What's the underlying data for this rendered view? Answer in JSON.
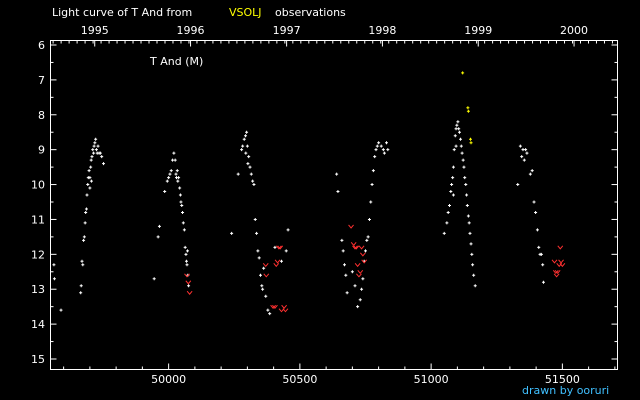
{
  "chart_data": {
    "type": "scatter",
    "title_parts": [
      "Light curve of T And from",
      "VSOLJ",
      "observations"
    ],
    "star_label": "T And (M)",
    "credit": "drawn by ooruri",
    "x_axis": {
      "label": "",
      "range": [
        49550,
        51710
      ],
      "ticks": [
        50000,
        50500,
        51000,
        51500
      ],
      "tick_labels": [
        "50000",
        "50500",
        "51000",
        "51500"
      ]
    },
    "year_axis": {
      "labels": [
        "1995",
        "1996",
        "1997",
        "1998",
        "1999",
        "2000"
      ],
      "positions_jd": [
        49718.5,
        50083.5,
        50449.5,
        50814.5,
        51179.5,
        51544.5
      ]
    },
    "y_axis": {
      "label": "",
      "range": [
        6,
        15.3
      ],
      "inverted": true,
      "ticks": [
        6,
        7,
        8,
        9,
        10,
        11,
        12,
        13,
        14,
        15
      ],
      "tick_labels": [
        "6",
        "7",
        "8",
        "9",
        "10",
        "11",
        "12",
        "13",
        "14",
        "15"
      ]
    },
    "colors": {
      "visual": "#ffffff",
      "other": "#ffff00",
      "fainter_than": "#ff3030"
    },
    "series": [
      {
        "marker": "plus",
        "color": "#ffffff",
        "points": [
          [
            49563,
            12.3
          ],
          [
            49565,
            12.7
          ],
          [
            49590,
            13.6
          ],
          [
            49665,
            13.1
          ],
          [
            49667,
            12.9
          ],
          [
            49670,
            12.2
          ],
          [
            49673,
            12.3
          ],
          [
            49676,
            11.6
          ],
          [
            49679,
            11.5
          ],
          [
            49682,
            11.1
          ],
          [
            49684,
            10.8
          ],
          [
            49687,
            10.7
          ],
          [
            49689,
            10.3
          ],
          [
            49692,
            10.0
          ],
          [
            49694,
            9.8
          ],
          [
            49697,
            9.6
          ],
          [
            49700,
            9.8
          ],
          [
            49703,
            9.5
          ],
          [
            49705,
            9.3
          ],
          [
            49708,
            9.2
          ],
          [
            49711,
            9.0
          ],
          [
            49714,
            9.1
          ],
          [
            49716,
            8.9
          ],
          [
            49719,
            8.8
          ],
          [
            49722,
            8.7
          ],
          [
            49725,
            9.0
          ],
          [
            49728,
            9.1
          ],
          [
            49731,
            8.9
          ],
          [
            49735,
            9.1
          ],
          [
            49740,
            9.1
          ],
          [
            49745,
            9.2
          ],
          [
            49752,
            9.4
          ],
          [
            49706,
            9.9
          ],
          [
            49700,
            10.1
          ],
          [
            49945,
            12.7
          ],
          [
            49960,
            11.5
          ],
          [
            49965,
            11.2
          ],
          [
            49985,
            10.2
          ],
          [
            49995,
            9.9
          ],
          [
            50000,
            9.8
          ],
          [
            50005,
            9.7
          ],
          [
            50010,
            9.6
          ],
          [
            50015,
            9.3
          ],
          [
            50020,
            9.1
          ],
          [
            50025,
            9.3
          ],
          [
            50028,
            9.7
          ],
          [
            50030,
            9.8
          ],
          [
            50033,
            9.6
          ],
          [
            50035,
            9.9
          ],
          [
            50038,
            9.8
          ],
          [
            50042,
            10.1
          ],
          [
            50045,
            10.3
          ],
          [
            50047,
            10.5
          ],
          [
            50050,
            10.6
          ],
          [
            50053,
            10.8
          ],
          [
            50056,
            11.1
          ],
          [
            50060,
            11.3
          ],
          [
            50063,
            11.8
          ],
          [
            50066,
            12.0
          ],
          [
            50070,
            12.3
          ],
          [
            50073,
            12.6
          ],
          [
            50076,
            12.9
          ],
          [
            50072,
            11.9
          ],
          [
            50068,
            12.2
          ],
          [
            50240,
            11.4
          ],
          [
            50265,
            9.7
          ],
          [
            50278,
            9.0
          ],
          [
            50282,
            8.9
          ],
          [
            50288,
            8.7
          ],
          [
            50293,
            8.6
          ],
          [
            50297,
            8.5
          ],
          [
            50300,
            8.9
          ],
          [
            50305,
            9.2
          ],
          [
            50310,
            9.5
          ],
          [
            50315,
            9.7
          ],
          [
            50320,
            9.9
          ],
          [
            50325,
            10.0
          ],
          [
            50330,
            11.0
          ],
          [
            50335,
            11.4
          ],
          [
            50340,
            11.9
          ],
          [
            50345,
            12.1
          ],
          [
            50350,
            12.6
          ],
          [
            50355,
            12.9
          ],
          [
            50358,
            13.0
          ],
          [
            50362,
            12.4
          ],
          [
            50370,
            13.2
          ],
          [
            50378,
            13.6
          ],
          [
            50385,
            13.7
          ],
          [
            50405,
            11.8
          ],
          [
            50430,
            12.2
          ],
          [
            50448,
            11.9
          ],
          [
            50455,
            11.3
          ],
          [
            50294,
            9.1
          ],
          [
            50302,
            9.4
          ],
          [
            50640,
            9.7
          ],
          [
            50645,
            10.2
          ],
          [
            50660,
            11.6
          ],
          [
            50665,
            11.9
          ],
          [
            50670,
            12.3
          ],
          [
            50675,
            12.6
          ],
          [
            50680,
            13.1
          ],
          [
            50700,
            12.5
          ],
          [
            50710,
            12.9
          ],
          [
            50720,
            13.5
          ],
          [
            50730,
            13.3
          ],
          [
            50735,
            13.0
          ],
          [
            50740,
            12.7
          ],
          [
            50745,
            12.2
          ],
          [
            50750,
            11.9
          ],
          [
            50755,
            11.6
          ],
          [
            50760,
            11.5
          ],
          [
            50765,
            11.0
          ],
          [
            50770,
            10.5
          ],
          [
            50775,
            10.0
          ],
          [
            50780,
            9.6
          ],
          [
            50785,
            9.2
          ],
          [
            50790,
            9.0
          ],
          [
            50795,
            8.9
          ],
          [
            50800,
            8.8
          ],
          [
            50810,
            8.9
          ],
          [
            50818,
            9.0
          ],
          [
            50822,
            9.1
          ],
          [
            50830,
            8.8
          ],
          [
            50835,
            9.0
          ],
          [
            51050,
            11.4
          ],
          [
            51060,
            11.1
          ],
          [
            51065,
            10.8
          ],
          [
            51070,
            10.6
          ],
          [
            51075,
            10.2
          ],
          [
            51078,
            10.0
          ],
          [
            51082,
            9.8
          ],
          [
            51085,
            9.5
          ],
          [
            51088,
            9.0
          ],
          [
            51092,
            8.6
          ],
          [
            51095,
            8.4
          ],
          [
            51098,
            8.3
          ],
          [
            51102,
            8.2
          ],
          [
            51105,
            8.4
          ],
          [
            51108,
            8.5
          ],
          [
            51112,
            8.7
          ],
          [
            51115,
            8.9
          ],
          [
            51118,
            9.1
          ],
          [
            51122,
            9.3
          ],
          [
            51125,
            9.5
          ],
          [
            51128,
            9.8
          ],
          [
            51132,
            10.0
          ],
          [
            51135,
            10.3
          ],
          [
            51138,
            10.6
          ],
          [
            51142,
            10.9
          ],
          [
            51145,
            11.1
          ],
          [
            51148,
            11.4
          ],
          [
            51152,
            11.7
          ],
          [
            51155,
            12.0
          ],
          [
            51158,
            12.3
          ],
          [
            51162,
            12.6
          ],
          [
            51168,
            12.9
          ],
          [
            51085,
            10.3
          ],
          [
            51095,
            8.9
          ],
          [
            51330,
            10.0
          ],
          [
            51340,
            8.9
          ],
          [
            51345,
            9.2
          ],
          [
            51350,
            9.0
          ],
          [
            51355,
            9.3
          ],
          [
            51360,
            9.0
          ],
          [
            51365,
            9.1
          ],
          [
            51378,
            9.7
          ],
          [
            51385,
            9.6
          ],
          [
            51392,
            10.5
          ],
          [
            51398,
            10.8
          ],
          [
            51405,
            11.3
          ],
          [
            51410,
            11.8
          ],
          [
            51415,
            12.0
          ],
          [
            51420,
            12.0
          ],
          [
            51425,
            12.3
          ],
          [
            51428,
            12.8
          ]
        ]
      },
      {
        "marker": "plus",
        "color": "#ffff00",
        "points": [
          [
            51120,
            6.8
          ],
          [
            51140,
            7.8
          ],
          [
            51142,
            7.9
          ],
          [
            51150,
            8.7
          ],
          [
            51152,
            8.8
          ]
        ]
      },
      {
        "marker": "fainter_than",
        "color": "#ff3030",
        "points": [
          [
            50070,
            12.6
          ],
          [
            50075,
            12.8
          ],
          [
            50080,
            13.1
          ],
          [
            50370,
            12.3
          ],
          [
            50372,
            12.6
          ],
          [
            50398,
            13.5
          ],
          [
            50405,
            13.5
          ],
          [
            50410,
            12.3
          ],
          [
            50415,
            12.2
          ],
          [
            50420,
            11.8
          ],
          [
            50425,
            11.8
          ],
          [
            50430,
            13.6
          ],
          [
            50440,
            13.5
          ],
          [
            50445,
            13.6
          ],
          [
            50695,
            11.2
          ],
          [
            50705,
            11.7
          ],
          [
            50710,
            11.8
          ],
          [
            50715,
            11.8
          ],
          [
            50720,
            12.3
          ],
          [
            50725,
            12.6
          ],
          [
            50730,
            12.5
          ],
          [
            50735,
            11.8
          ],
          [
            50740,
            12.0
          ],
          [
            50745,
            12.2
          ],
          [
            51470,
            12.2
          ],
          [
            51475,
            12.5
          ],
          [
            51478,
            12.6
          ],
          [
            51482,
            12.5
          ],
          [
            51488,
            12.3
          ],
          [
            51492,
            11.8
          ],
          [
            51495,
            12.2
          ],
          [
            51500,
            12.3
          ]
        ]
      }
    ]
  }
}
